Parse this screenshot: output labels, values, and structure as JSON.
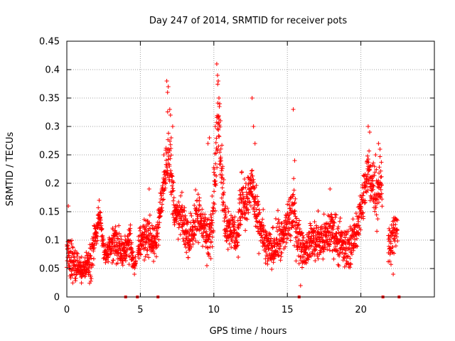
{
  "chart_data": {
    "type": "scatter",
    "title": "Day 247 of 2014, SRMTID for receiver pots",
    "xlabel": "GPS time / hours",
    "ylabel": "SRMTID / TECUs",
    "xlim": [
      0,
      25
    ],
    "ylim": [
      0,
      0.45
    ],
    "x_ticks": [
      0,
      5,
      10,
      15,
      20
    ],
    "x_tick_labels": [
      "0",
      "5",
      "10",
      "15",
      "20"
    ],
    "y_ticks": [
      0,
      0.05,
      0.1,
      0.15,
      0.2,
      0.25,
      0.3,
      0.35,
      0.4,
      0.45
    ],
    "y_tick_labels": [
      "0",
      "0.05",
      "0.1",
      "0.15",
      "0.2",
      "0.25",
      "0.3",
      "0.35",
      "0.4",
      "0.45"
    ],
    "grid": true,
    "marker": "+",
    "series_color": "#ff0000",
    "envelope": [
      [
        0.0,
        0.07,
        0.06
      ],
      [
        0.2,
        0.07,
        0.07
      ],
      [
        0.5,
        0.06,
        0.03
      ],
      [
        0.8,
        0.05,
        0.03
      ],
      [
        1.2,
        0.05,
        0.02
      ],
      [
        1.6,
        0.07,
        0.05
      ],
      [
        2.0,
        0.11,
        0.04
      ],
      [
        2.2,
        0.14,
        0.03
      ],
      [
        2.6,
        0.07,
        0.02
      ],
      [
        3.0,
        0.09,
        0.03
      ],
      [
        3.3,
        0.1,
        0.04
      ],
      [
        3.6,
        0.08,
        0.04
      ],
      [
        3.9,
        0.08,
        0.02
      ],
      [
        4.3,
        0.1,
        0.05
      ],
      [
        4.6,
        0.05,
        0.01
      ],
      [
        5.0,
        0.1,
        0.04
      ],
      [
        5.5,
        0.11,
        0.05
      ],
      [
        6.0,
        0.09,
        0.03
      ],
      [
        6.3,
        0.14,
        0.04
      ],
      [
        6.6,
        0.2,
        0.05
      ],
      [
        6.9,
        0.27,
        0.09
      ],
      [
        7.1,
        0.21,
        0.06
      ],
      [
        7.4,
        0.14,
        0.04
      ],
      [
        7.8,
        0.14,
        0.05
      ],
      [
        8.3,
        0.1,
        0.04
      ],
      [
        8.7,
        0.13,
        0.06
      ],
      [
        9.0,
        0.14,
        0.06
      ],
      [
        9.3,
        0.13,
        0.05
      ],
      [
        9.6,
        0.09,
        0.05
      ],
      [
        9.9,
        0.13,
        0.06
      ],
      [
        10.1,
        0.25,
        0.1
      ],
      [
        10.3,
        0.33,
        0.08
      ],
      [
        10.5,
        0.22,
        0.06
      ],
      [
        10.8,
        0.13,
        0.05
      ],
      [
        11.2,
        0.12,
        0.04
      ],
      [
        11.6,
        0.1,
        0.05
      ],
      [
        11.9,
        0.18,
        0.05
      ],
      [
        12.2,
        0.16,
        0.05
      ],
      [
        12.6,
        0.2,
        0.06
      ],
      [
        12.9,
        0.14,
        0.05
      ],
      [
        13.2,
        0.12,
        0.05
      ],
      [
        13.5,
        0.09,
        0.05
      ],
      [
        13.9,
        0.08,
        0.04
      ],
      [
        14.3,
        0.1,
        0.05
      ],
      [
        14.7,
        0.1,
        0.05
      ],
      [
        15.0,
        0.13,
        0.05
      ],
      [
        15.4,
        0.15,
        0.07
      ],
      [
        15.8,
        0.1,
        0.05
      ],
      [
        16.2,
        0.08,
        0.03
      ],
      [
        16.6,
        0.1,
        0.04
      ],
      [
        17.0,
        0.1,
        0.05
      ],
      [
        17.5,
        0.1,
        0.05
      ],
      [
        18.0,
        0.12,
        0.05
      ],
      [
        18.5,
        0.1,
        0.05
      ],
      [
        19.0,
        0.08,
        0.05
      ],
      [
        19.5,
        0.1,
        0.04
      ],
      [
        19.9,
        0.14,
        0.05
      ],
      [
        20.2,
        0.18,
        0.05
      ],
      [
        20.5,
        0.22,
        0.07
      ],
      [
        20.8,
        0.2,
        0.06
      ],
      [
        21.1,
        0.18,
        0.07
      ],
      [
        21.3,
        0.21,
        0.06
      ],
      [
        21.9,
        0.09,
        0.04
      ],
      [
        22.2,
        0.11,
        0.04
      ],
      [
        22.5,
        0.12,
        0.04
      ]
    ],
    "gaps": [
      [
        4.7,
        4.82
      ],
      [
        21.45,
        21.85
      ]
    ],
    "peaks": [
      [
        6.8,
        0.38
      ],
      [
        6.9,
        0.37
      ],
      [
        6.85,
        0.36
      ],
      [
        7.0,
        0.33
      ],
      [
        7.05,
        0.32
      ],
      [
        7.2,
        0.3
      ],
      [
        7.1,
        0.28
      ],
      [
        6.6,
        0.25
      ],
      [
        10.2,
        0.41
      ],
      [
        10.25,
        0.39
      ],
      [
        10.3,
        0.38
      ],
      [
        10.35,
        0.35
      ],
      [
        10.4,
        0.34
      ],
      [
        10.45,
        0.31
      ],
      [
        10.1,
        0.3
      ],
      [
        9.7,
        0.28
      ],
      [
        9.6,
        0.27
      ],
      [
        12.6,
        0.35
      ],
      [
        12.7,
        0.3
      ],
      [
        12.8,
        0.27
      ],
      [
        15.4,
        0.33
      ],
      [
        15.5,
        0.24
      ],
      [
        20.5,
        0.3
      ],
      [
        20.6,
        0.29
      ],
      [
        21.2,
        0.27
      ],
      [
        21.3,
        0.26
      ],
      [
        21.0,
        0.25
      ],
      [
        0.1,
        0.16
      ],
      [
        2.2,
        0.17
      ],
      [
        5.6,
        0.19
      ],
      [
        11.9,
        0.22
      ],
      [
        17.9,
        0.19
      ],
      [
        15.9,
        0.02
      ],
      [
        4.6,
        0.04
      ],
      [
        22.2,
        0.04
      ]
    ],
    "zero_markers_x": [
      4.0,
      4.8,
      6.2,
      15.8,
      21.5,
      22.6
    ]
  }
}
